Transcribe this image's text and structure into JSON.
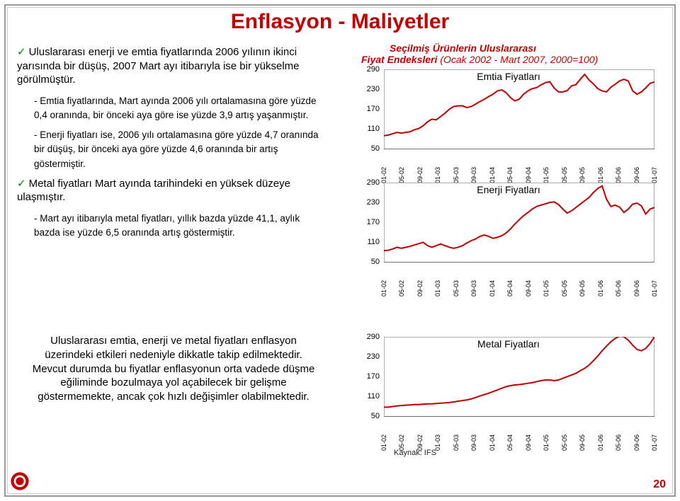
{
  "title": "Enflasyon - Maliyetler",
  "bullets": {
    "b1": "Uluslararası enerji ve emtia fiyatlarında 2006 yılının ikinci yarısında bir düşüş, 2007 Mart ayı itibarıyla ise bir yükselme görülmüştür.",
    "b1_sub1": "- Emtia fiyatlarında, Mart ayında 2006 yılı ortalamasına göre yüzde 0,4 oranında, bir önceki aya göre ise yüzde 3,9 artış yaşanmıştır.",
    "b1_sub2": "- Enerji fiyatları ise, 2006 yılı ortalamasına göre yüzde 4,7 oranında bir düşüş, bir önceki aya göre yüzde 4,6 oranında bir artış göstermiştir.",
    "b2": "Metal fiyatları Mart ayında tarihindeki en yüksek düzeye ulaşmıştır.",
    "b2_sub1": "- Mart ayı itibarıyla metal fiyatları, yıllık bazda yüzde 41,1, aylık bazda ise yüzde 6,5 oranında artış göstermiştir."
  },
  "mid_text": "Uluslararası emtia, enerji ve metal fiyatları enflasyon üzerindeki etkileri nedeniyle dikkatle takip edilmektedir. Mevcut durumda bu fiyatlar enflasyonun orta vadede düşme eğiliminde bozulmaya yol açabilecek bir gelişme göstermemekte, ancak çok hızlı değişimler olabilmektedir.",
  "charts_header": {
    "line1": "Seçilmiş Ürünlerin Uluslararası",
    "line2pre": "Fiyat Endeksleri",
    "line2post": "(Ocak 2002 - Mart 2007, 2000=100)"
  },
  "charts": {
    "yticks": [
      50,
      110,
      170,
      230,
      290
    ],
    "ylim": [
      50,
      290
    ],
    "xlabels": [
      "01-02",
      "05-02",
      "09-02",
      "01-03",
      "05-03",
      "09-03",
      "01-04",
      "05-04",
      "09-04",
      "01-05",
      "05-05",
      "09-05",
      "01-06",
      "05-06",
      "09-06",
      "01-07"
    ],
    "line_color": "#c00000",
    "grid_color": "#666666",
    "chart1": {
      "label": "Emtia Fiyatları",
      "values": [
        90,
        92,
        96,
        100,
        98,
        100,
        102,
        108,
        112,
        120,
        132,
        140,
        138,
        148,
        158,
        170,
        178,
        180,
        180,
        175,
        178,
        185,
        193,
        200,
        208,
        215,
        225,
        228,
        220,
        205,
        195,
        200,
        215,
        225,
        232,
        235,
        243,
        250,
        253,
        234,
        222,
        222,
        226,
        240,
        244,
        260,
        275,
        258,
        246,
        232,
        225,
        222,
        236,
        245,
        255,
        260,
        255,
        225,
        215,
        222,
        234,
        248,
        252
      ]
    },
    "chart2": {
      "label": "Enerji Fiyatları",
      "values": [
        85,
        86,
        90,
        95,
        92,
        95,
        98,
        102,
        106,
        110,
        100,
        95,
        100,
        105,
        100,
        95,
        92,
        95,
        100,
        108,
        115,
        120,
        128,
        132,
        128,
        122,
        125,
        130,
        138,
        150,
        165,
        178,
        190,
        200,
        210,
        218,
        222,
        226,
        230,
        232,
        224,
        210,
        198,
        205,
        215,
        225,
        235,
        245,
        260,
        272,
        280,
        240,
        218,
        222,
        216,
        200,
        210,
        225,
        228,
        220,
        195,
        210,
        215
      ]
    },
    "chart3": {
      "label": "Metal Fiyatları",
      "values": [
        78,
        78,
        80,
        82,
        83,
        84,
        85,
        86,
        86,
        87,
        88,
        88,
        89,
        90,
        91,
        92,
        94,
        96,
        98,
        100,
        103,
        107,
        112,
        116,
        120,
        125,
        130,
        135,
        140,
        143,
        145,
        146,
        148,
        150,
        152,
        155,
        158,
        160,
        160,
        158,
        160,
        165,
        170,
        175,
        180,
        188,
        195,
        205,
        218,
        232,
        248,
        262,
        275,
        285,
        292,
        290,
        280,
        265,
        252,
        248,
        255,
        270,
        290
      ]
    }
  },
  "source": "Kaynak: IFS",
  "page_number": "20"
}
